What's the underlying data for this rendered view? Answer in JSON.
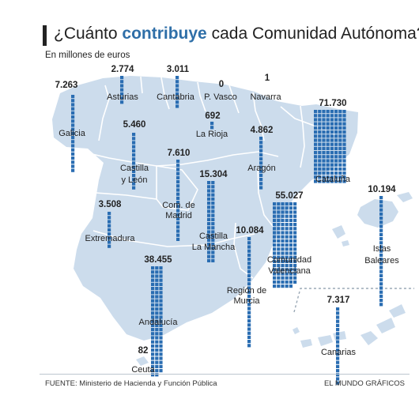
{
  "header": {
    "title_prefix": "¿Cuánto ",
    "title_accent": "contribuye",
    "title_suffix": "  cada Comunidad Autónoma?",
    "subtitle": "En millones de euros"
  },
  "colors": {
    "land": "#ccdcec",
    "border": "#ffffff",
    "bar": "#2a6db2",
    "accent": "#2f6fa8"
  },
  "regions": [
    {
      "id": "galicia",
      "name": [
        "Galicia"
      ],
      "value": "7.263",
      "squares": 19
    },
    {
      "id": "asturias",
      "name": [
        "Asturias"
      ],
      "value": "2.774",
      "squares": 7
    },
    {
      "id": "cantabria",
      "name": [
        "Cantabria"
      ],
      "value": "3.011",
      "squares": 8
    },
    {
      "id": "pais-vasco",
      "name": [
        "P. Vasco"
      ],
      "value": "0",
      "squares": 0
    },
    {
      "id": "navarra",
      "name": [
        "Navarra"
      ],
      "value": "1",
      "squares": 0
    },
    {
      "id": "la-rioja",
      "name": [
        "La Rioja"
      ],
      "value": "692",
      "squares": 2
    },
    {
      "id": "castilla-leon",
      "name": [
        "Castilla",
        "y León"
      ],
      "value": "5.460",
      "squares": 14
    },
    {
      "id": "aragon",
      "name": [
        "Aragón"
      ],
      "value": "4.862",
      "squares": 13
    },
    {
      "id": "cataluna",
      "name": [
        "Cataluña"
      ],
      "value": "71.730",
      "squares": 144
    },
    {
      "id": "madrid",
      "name": [
        "Com. de",
        "Madrid"
      ],
      "value": "7.610",
      "squares": 20
    },
    {
      "id": "castilla-la-mancha",
      "name": [
        "Castilla",
        "La Mancha"
      ],
      "value": "15.304",
      "squares": 40
    },
    {
      "id": "extremadura",
      "name": [
        "Extremadura"
      ],
      "value": "3.508",
      "squares": 9
    },
    {
      "id": "comunidad-valenciana",
      "name": [
        "Comunidad",
        "Valenciana"
      ],
      "value": "55.027",
      "squares": 125
    },
    {
      "id": "islas-baleares",
      "name": [
        "Islas",
        "Baleares"
      ],
      "value": "10.194",
      "squares": 27
    },
    {
      "id": "murcia",
      "name": [
        "Región de",
        "Murcia"
      ],
      "value": "10.084",
      "squares": 27
    },
    {
      "id": "andalucia",
      "name": [
        "Andalucía"
      ],
      "value": "38.455",
      "squares": 80
    },
    {
      "id": "canarias",
      "name": [
        "Canarias"
      ],
      "value": "7.317",
      "squares": 19
    },
    {
      "id": "ceuta",
      "name": [
        "Ceuta"
      ],
      "value": "82",
      "squares": 0
    }
  ],
  "footer": {
    "source": "FUENTE: Ministerio de Hacienda y Función Pública",
    "credit": "EL MUNDO GRÁFICOS"
  }
}
